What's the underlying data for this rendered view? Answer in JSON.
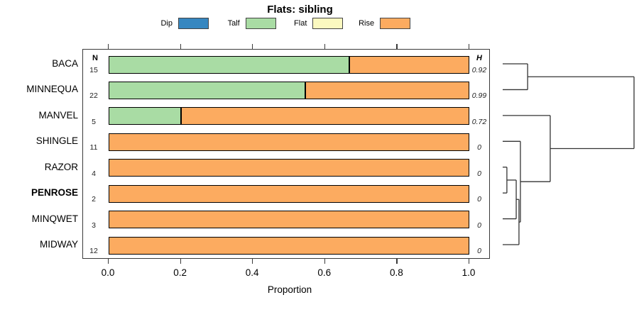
{
  "chart_data": {
    "type": "bar",
    "variant": "horizontal-stacked-proportion-bars-with-dendrogram",
    "title": "Flats: sibling",
    "xlabel": "Proportion",
    "xlim": [
      0,
      1
    ],
    "x_ticks": [
      0.0,
      0.2,
      0.4,
      0.6,
      0.8,
      1.0
    ],
    "grid": false,
    "legend": {
      "position": "top",
      "entries": [
        {
          "label": "Dip",
          "color": "#3787C0"
        },
        {
          "label": "Talf",
          "color": "#A9DCA4"
        },
        {
          "label": "Flat",
          "color": "#FBF9C0"
        },
        {
          "label": "Rise",
          "color": "#FCAB60"
        }
      ]
    },
    "columns": {
      "n_header": "N",
      "h_header": "H"
    },
    "rows": [
      {
        "label": "BACA",
        "bold": false,
        "n": 15,
        "h": "0.92",
        "segments": [
          {
            "category": "Talf",
            "value": 0.667
          },
          {
            "category": "Rise",
            "value": 0.333
          }
        ]
      },
      {
        "label": "MINNEQUA",
        "bold": false,
        "n": 22,
        "h": "0.99",
        "segments": [
          {
            "category": "Talf",
            "value": 0.545
          },
          {
            "category": "Rise",
            "value": 0.455
          }
        ]
      },
      {
        "label": "MANVEL",
        "bold": false,
        "n": 5,
        "h": "0.72",
        "segments": [
          {
            "category": "Talf",
            "value": 0.2
          },
          {
            "category": "Rise",
            "value": 0.8
          }
        ]
      },
      {
        "label": "SHINGLE",
        "bold": false,
        "n": 11,
        "h": "0",
        "segments": [
          {
            "category": "Rise",
            "value": 1.0
          }
        ]
      },
      {
        "label": "RAZOR",
        "bold": false,
        "n": 4,
        "h": "0",
        "segments": [
          {
            "category": "Rise",
            "value": 1.0
          }
        ]
      },
      {
        "label": "PENROSE",
        "bold": true,
        "n": 2,
        "h": "0",
        "segments": [
          {
            "category": "Rise",
            "value": 1.0
          }
        ]
      },
      {
        "label": "MINQWET",
        "bold": false,
        "n": 3,
        "h": "0",
        "segments": [
          {
            "category": "Rise",
            "value": 1.0
          }
        ]
      },
      {
        "label": "MIDWAY",
        "bold": false,
        "n": 12,
        "h": "0",
        "segments": [
          {
            "category": "Rise",
            "value": 1.0
          }
        ]
      }
    ],
    "dendrogram": {
      "orientation": "right-of-bars, heights increase to the right",
      "leaves": [
        "BACA",
        "MINNEQUA",
        "MANVEL",
        "SHINGLE",
        "RAZOR",
        "PENROSE",
        "MINQWET",
        "MIDWAY"
      ],
      "merges": [
        {
          "id": "m2",
          "children": [
            "RAZOR",
            "PENROSE"
          ],
          "height": 0.032
        },
        {
          "id": "m3",
          "children": [
            "m2",
            "MINQWET"
          ],
          "height": 0.103
        },
        {
          "id": "m4",
          "children": [
            "m3",
            "MIDWAY"
          ],
          "height": 0.124
        },
        {
          "id": "m5",
          "children": [
            "SHINGLE",
            "m4"
          ],
          "height": 0.135
        },
        {
          "id": "m1",
          "children": [
            "BACA",
            "MINNEQUA"
          ],
          "height": 0.19
        },
        {
          "id": "m6",
          "children": [
            "MANVEL",
            "m5"
          ],
          "height": 0.362
        },
        {
          "id": "root",
          "children": [
            "m1",
            "m6"
          ],
          "height": 1.0
        }
      ]
    }
  }
}
